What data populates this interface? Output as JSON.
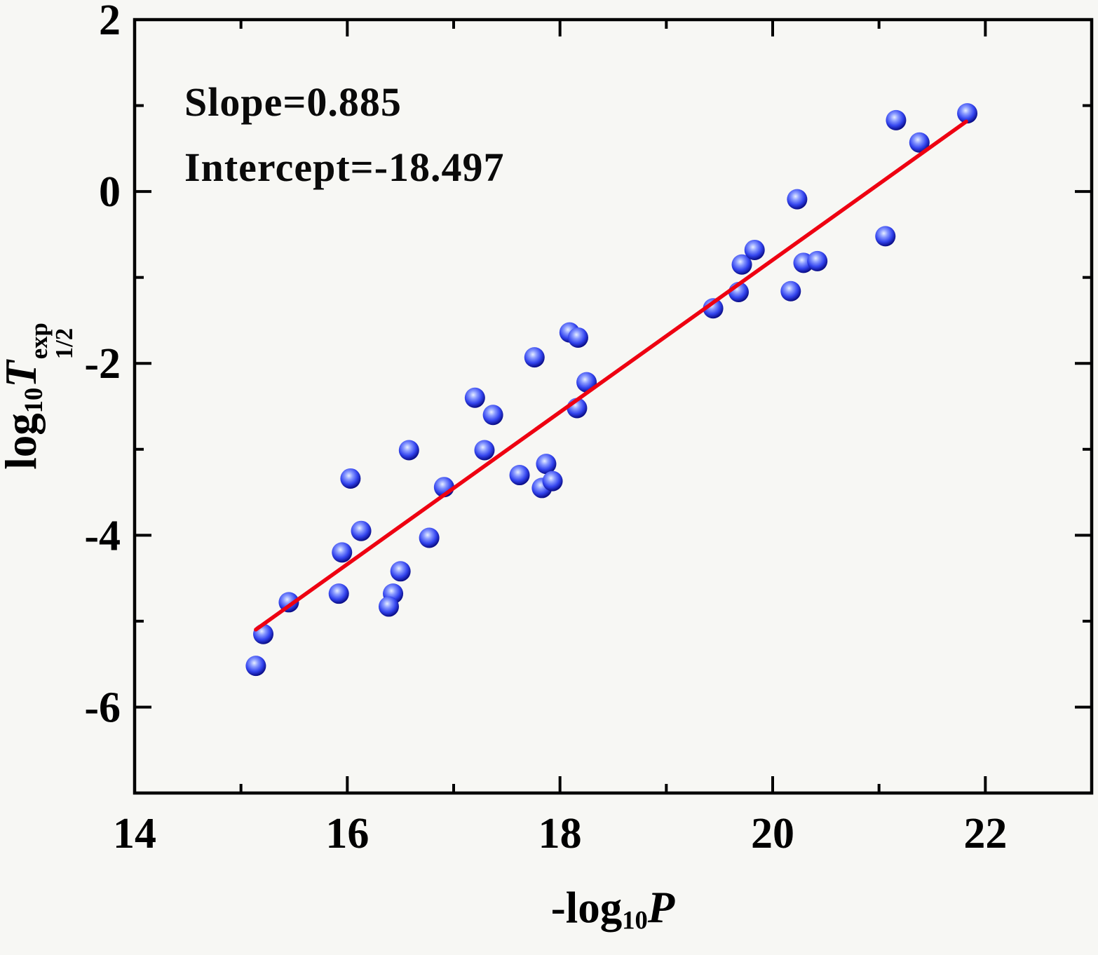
{
  "figure": {
    "background": "#f7f7f4",
    "annotation": {
      "line1": "Slope=0.885",
      "line2": "Intercept=-18.497"
    }
  },
  "chart_data": {
    "type": "scatter",
    "title": "",
    "xlabel": "-log10(P)",
    "ylabel": "log10(T_1/2^exp)",
    "xlabel_parts": {
      "prefix": "-log",
      "prefix_sub": "10",
      "symbol": "P"
    },
    "ylabel_parts": {
      "prefix": "log",
      "prefix_sub": "10",
      "symbol": "T",
      "sup": "exp",
      "sub": "1/2"
    },
    "xlim": [
      14,
      23
    ],
    "ylim": [
      -7,
      2
    ],
    "x_major_ticks": [
      14,
      16,
      18,
      20,
      22
    ],
    "x_minor_ticks": [
      15,
      17,
      19,
      21
    ],
    "y_major_ticks": [
      2,
      0,
      -2,
      -4,
      -6
    ],
    "y_minor_ticks": [
      1,
      -1,
      -3,
      -5
    ],
    "grid": false,
    "legend": "none",
    "marker_color": "#2222cc",
    "marker_highlight": "#e6eeff",
    "marker_mid": "#3344ee",
    "marker_edge": "#000070",
    "frame_color": "#000000",
    "points": [
      [
        15.14,
        -5.52
      ],
      [
        15.21,
        -5.15
      ],
      [
        15.45,
        -4.78
      ],
      [
        15.92,
        -4.68
      ],
      [
        16.43,
        -4.68
      ],
      [
        16.39,
        -4.83
      ],
      [
        16.5,
        -4.42
      ],
      [
        15.95,
        -4.2
      ],
      [
        16.13,
        -3.95
      ],
      [
        16.77,
        -4.03
      ],
      [
        16.03,
        -3.34
      ],
      [
        16.58,
        -3.01
      ],
      [
        16.91,
        -3.44
      ],
      [
        17.2,
        -2.4
      ],
      [
        17.37,
        -2.6
      ],
      [
        17.29,
        -3.01
      ],
      [
        17.62,
        -3.3
      ],
      [
        17.83,
        -3.45
      ],
      [
        17.87,
        -3.17
      ],
      [
        17.93,
        -3.37
      ],
      [
        17.76,
        -1.93
      ],
      [
        18.09,
        -1.64
      ],
      [
        18.17,
        -1.7
      ],
      [
        18.16,
        -2.52
      ],
      [
        18.25,
        -2.22
      ],
      [
        19.44,
        -1.36
      ],
      [
        19.68,
        -1.17
      ],
      [
        19.71,
        -0.85
      ],
      [
        19.83,
        -0.68
      ],
      [
        20.17,
        -1.16
      ],
      [
        20.29,
        -0.83
      ],
      [
        20.42,
        -0.81
      ],
      [
        20.23,
        -0.09
      ],
      [
        21.06,
        -0.52
      ],
      [
        21.16,
        0.83
      ],
      [
        21.38,
        0.57
      ],
      [
        21.83,
        0.91
      ]
    ],
    "fit_line": {
      "slope": 0.885,
      "intercept": -18.497,
      "x_start": 15.14,
      "x_end": 21.82,
      "color": "#ee0011"
    }
  }
}
